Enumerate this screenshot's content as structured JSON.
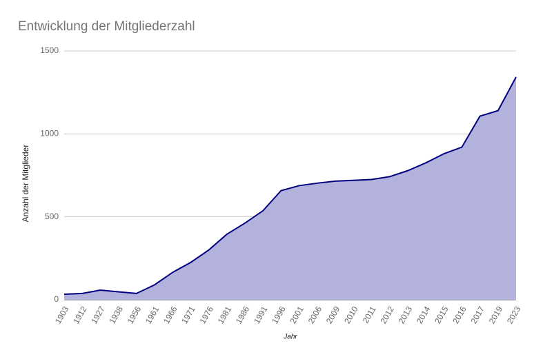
{
  "chart_data": {
    "type": "area",
    "title": "Entwicklung der Mitgliederzahl",
    "x_label": "Jahr",
    "y_label": "Anzahl der Mitglieder",
    "categories": [
      "1903",
      "1912",
      "1927",
      "1938",
      "1956",
      "1961",
      "1966",
      "1971",
      "1976",
      "1981",
      "1986",
      "1991",
      "1996",
      "2001",
      "2006",
      "2009",
      "2010",
      "2011",
      "2012",
      "2013",
      "2014",
      "2015",
      "2016",
      "2017",
      "2019",
      "2023"
    ],
    "values": [
      33,
      38,
      58,
      48,
      38,
      90,
      165,
      225,
      300,
      395,
      462,
      537,
      658,
      688,
      703,
      715,
      720,
      725,
      742,
      778,
      825,
      880,
      920,
      1107,
      1140,
      1343
    ],
    "color": "#00007f",
    "fill": "#b2b2dc",
    "ylim": [
      0,
      1500
    ],
    "yticks": [
      0,
      500,
      1000,
      1500
    ],
    "grid": true
  }
}
